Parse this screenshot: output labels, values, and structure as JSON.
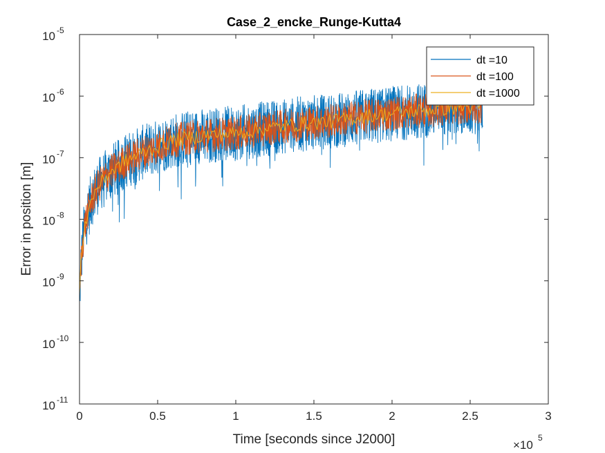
{
  "chart_data": {
    "type": "line",
    "title": "Case_2_encke_Runge-Kutta4",
    "xlabel": "Time [seconds since J2000]",
    "ylabel": "Error in position [m]",
    "x_multiplier": "×10",
    "x_multiplier_exp": "5",
    "xlim": [
      0,
      300000
    ],
    "ylim": [
      1e-11,
      1e-05
    ],
    "yscale": "log",
    "x_ticks": [
      0,
      50000,
      100000,
      150000,
      200000,
      250000,
      300000
    ],
    "x_tick_labels": [
      "0",
      "0.5",
      "1",
      "1.5",
      "2",
      "2.5",
      "3"
    ],
    "y_ticks": [
      1e-11,
      1e-10,
      1e-09,
      1e-08,
      1e-07,
      1e-06,
      1e-05
    ],
    "y_tick_base": "10",
    "y_tick_exps": [
      "-11",
      "-10",
      "-9",
      "-8",
      "-7",
      "-6",
      "-5"
    ],
    "grid": false,
    "legend_position": "top-right",
    "series": [
      {
        "name": "dt =10",
        "color": "#0072BD",
        "x": [
          0,
          1000,
          2000,
          3000,
          5000,
          8000,
          12000,
          20000,
          25000,
          27000,
          30000,
          40000,
          50000,
          55000,
          60000,
          70000,
          80000,
          90000,
          100000,
          110000,
          120000,
          130000,
          140000,
          150000,
          160000,
          170000,
          180000,
          190000,
          200000,
          205000,
          210000,
          215000,
          220000,
          225000,
          230000,
          235000,
          240000,
          245000,
          250000,
          255000,
          258000
        ],
        "y": [
          5e-10,
          2e-09,
          4e-09,
          7e-09,
          1.2e-08,
          2.2e-08,
          3.5e-08,
          6e-08,
          7e-08,
          8e-08,
          9e-08,
          1.2e-07,
          1.5e-07,
          1.7e-07,
          1.9e-07,
          2.1e-07,
          2.3e-07,
          2.4e-07,
          2.5e-07,
          2.7e-07,
          3e-07,
          3.2e-07,
          3.5e-07,
          3.7e-07,
          3.9e-07,
          4.2e-07,
          4.6e-07,
          4.9e-07,
          5.2e-07,
          5.4e-07,
          5.5e-07,
          5.7e-07,
          5.9e-07,
          6e-07,
          6.2e-07,
          6.3e-07,
          6.5e-07,
          6.6e-07,
          6.7e-07,
          6.8e-07,
          6.9e-07
        ]
      },
      {
        "name": "dt =100",
        "color": "#D95319",
        "x": [
          0,
          1000,
          2000,
          3000,
          5000,
          8000,
          12000,
          20000,
          25000,
          27000,
          30000,
          40000,
          50000,
          55000,
          60000,
          70000,
          80000,
          90000,
          100000,
          110000,
          120000,
          130000,
          140000,
          150000,
          160000,
          170000,
          180000,
          190000,
          200000,
          205000,
          210000,
          215000,
          220000,
          225000,
          230000,
          235000,
          240000,
          245000,
          250000,
          255000,
          258000
        ],
        "y": [
          5e-10,
          2e-09,
          4e-09,
          7e-09,
          1.2e-08,
          2.2e-08,
          3.5e-08,
          6e-08,
          7e-08,
          8e-08,
          9e-08,
          1.2e-07,
          1.5e-07,
          1.7e-07,
          1.9e-07,
          2.1e-07,
          2.3e-07,
          2.4e-07,
          2.5e-07,
          2.7e-07,
          3e-07,
          3.2e-07,
          3.5e-07,
          3.7e-07,
          3.9e-07,
          4.2e-07,
          4.6e-07,
          4.9e-07,
          5.2e-07,
          5.4e-07,
          5.5e-07,
          5.7e-07,
          5.9e-07,
          6e-07,
          6.2e-07,
          6.3e-07,
          6.5e-07,
          6.6e-07,
          6.7e-07,
          6.8e-07,
          6.9e-07
        ]
      },
      {
        "name": "dt =1000",
        "color": "#EDB120",
        "x": [
          0,
          1000,
          2000,
          3000,
          5000,
          8000,
          12000,
          20000,
          25000,
          27000,
          30000,
          40000,
          50000,
          55000,
          60000,
          70000,
          80000,
          90000,
          100000,
          110000,
          120000,
          130000,
          140000,
          150000,
          160000,
          170000,
          180000,
          190000,
          200000,
          205000,
          210000,
          215000,
          220000,
          225000,
          230000,
          235000,
          240000,
          245000,
          250000,
          255000,
          258000
        ],
        "y": [
          5e-10,
          2e-09,
          4e-09,
          7e-09,
          1.2e-08,
          2.2e-08,
          3.5e-08,
          6e-08,
          7e-08,
          8e-08,
          9e-08,
          1.2e-07,
          1.5e-07,
          1.7e-07,
          1.9e-07,
          2.1e-07,
          2.3e-07,
          2.4e-07,
          2.5e-07,
          2.7e-07,
          3e-07,
          3.2e-07,
          3.5e-07,
          3.7e-07,
          3.9e-07,
          4.2e-07,
          4.6e-07,
          4.9e-07,
          5.2e-07,
          5.4e-07,
          5.5e-07,
          5.7e-07,
          5.9e-07,
          6e-07,
          6.2e-07,
          6.3e-07,
          6.5e-07,
          6.6e-07,
          6.7e-07,
          6.8e-07,
          6.9e-07
        ]
      }
    ]
  }
}
